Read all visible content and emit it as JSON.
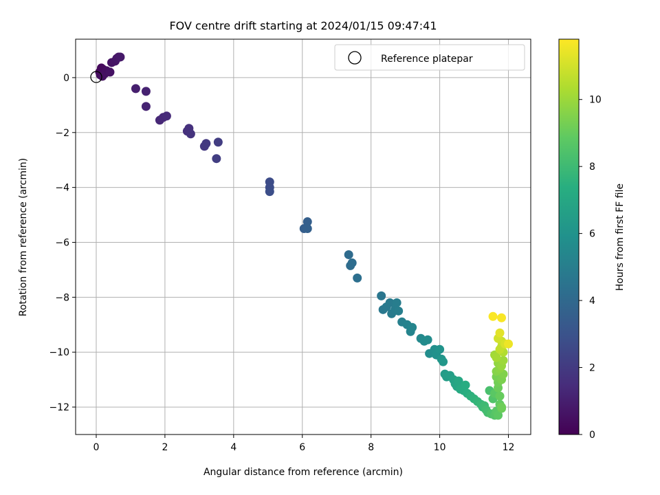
{
  "chart_data": {
    "type": "scatter",
    "title": "FOV centre drift starting at 2024/01/15 09:47:41",
    "xlabel": "Angular distance from reference (arcmin)",
    "ylabel": "Rotation from reference (arcmin)",
    "xlim": [
      -0.6,
      12.65
    ],
    "ylim": [
      -13.0,
      1.4
    ],
    "xticks": [
      0,
      2,
      4,
      6,
      8,
      10,
      12
    ],
    "yticks": [
      0,
      -2,
      -4,
      -6,
      -8,
      -10,
      -12
    ],
    "grid": true,
    "legend": {
      "placement": "top-right",
      "label": "Reference platepar"
    },
    "reference_point": {
      "x": 0,
      "y": 0
    },
    "colorbar": {
      "label": "Hours from first FF file",
      "min": 0,
      "max": 11.8,
      "ticks": [
        0,
        2,
        4,
        6,
        8,
        10
      ],
      "colormap": "viridis"
    },
    "series": [
      {
        "x": [
          0.1,
          0.15,
          0.2,
          0.12,
          0.25,
          0.3,
          0.18,
          0.4,
          0.45,
          0.55,
          0.6,
          0.65,
          0.7,
          1.15,
          1.45,
          1.45,
          1.85,
          1.95,
          2.05,
          2.65,
          2.7,
          2.75,
          3.15,
          3.2,
          3.55,
          3.5,
          5.05,
          5.05,
          5.05,
          6.05,
          6.15,
          6.15,
          7.35,
          7.4,
          7.45,
          7.6,
          8.3,
          8.35,
          8.45,
          8.55,
          8.6,
          8.7,
          8.75,
          8.8,
          8.9,
          9.05,
          9.15,
          9.2,
          9.45,
          9.55,
          9.65,
          9.7,
          9.85,
          9.9,
          10.0,
          10.05,
          10.1,
          10.15,
          10.2,
          10.3,
          10.4,
          10.45,
          10.5,
          10.55,
          10.6,
          10.7,
          10.75,
          10.8,
          10.9,
          11.0,
          11.1,
          11.2,
          11.25,
          11.3,
          11.35,
          11.4,
          11.45,
          11.5,
          11.55,
          11.6,
          11.65,
          11.6,
          11.7,
          11.75,
          11.55,
          11.8,
          11.65,
          11.7,
          11.75,
          11.85,
          11.8,
          11.7,
          11.75,
          11.8,
          11.65,
          11.7,
          11.8,
          11.85,
          11.9,
          11.75,
          11.8,
          11.85,
          11.7,
          11.75,
          11.65,
          11.6,
          11.8,
          12.0,
          11.8
        ],
        "y": [
          0.2,
          0.35,
          0.3,
          0.1,
          0.15,
          0.25,
          0.05,
          0.2,
          0.55,
          0.6,
          0.7,
          0.75,
          0.75,
          -0.4,
          -0.5,
          -1.05,
          -1.55,
          -1.45,
          -1.4,
          -1.95,
          -1.85,
          -2.05,
          -2.5,
          -2.4,
          -2.35,
          -2.95,
          -3.8,
          -4.0,
          -4.15,
          -5.5,
          -5.25,
          -5.5,
          -6.45,
          -6.85,
          -6.75,
          -7.3,
          -7.95,
          -8.45,
          -8.35,
          -8.2,
          -8.6,
          -8.45,
          -8.2,
          -8.5,
          -8.9,
          -9.0,
          -9.25,
          -9.1,
          -9.5,
          -9.6,
          -9.55,
          -10.05,
          -9.9,
          -10.1,
          -9.9,
          -10.25,
          -10.35,
          -10.8,
          -10.9,
          -10.85,
          -11.0,
          -11.15,
          -11.25,
          -11.05,
          -11.35,
          -11.4,
          -11.2,
          -11.5,
          -11.6,
          -11.7,
          -11.8,
          -11.9,
          -12.0,
          -11.95,
          -12.1,
          -12.2,
          -11.4,
          -12.25,
          -11.7,
          -12.3,
          -12.15,
          -11.5,
          -12.3,
          -11.9,
          -8.7,
          -8.75,
          -10.7,
          -10.4,
          -10.6,
          -10.0,
          -9.8,
          -9.5,
          -9.3,
          -9.6,
          -10.9,
          -11.1,
          -11.0,
          -10.3,
          -9.7,
          -9.9,
          -10.5,
          -10.8,
          -11.3,
          -11.6,
          -10.2,
          -10.1,
          -12.05,
          -9.7,
          -12.0
        ],
        "hours": [
          0.2,
          0.25,
          0.3,
          0.35,
          0.4,
          0.45,
          0.5,
          0.55,
          0.6,
          0.65,
          0.7,
          0.75,
          0.8,
          1.0,
          1.1,
          1.15,
          1.3,
          1.35,
          1.4,
          1.6,
          1.65,
          1.7,
          1.9,
          1.95,
          2.1,
          2.15,
          2.7,
          2.75,
          2.8,
          3.5,
          3.55,
          3.6,
          4.1,
          4.15,
          4.2,
          4.3,
          4.6,
          4.7,
          4.75,
          4.8,
          4.85,
          4.9,
          4.95,
          5.0,
          5.1,
          5.2,
          5.3,
          5.35,
          5.5,
          5.6,
          5.65,
          5.7,
          5.8,
          5.9,
          6.0,
          6.1,
          6.2,
          6.4,
          6.5,
          6.55,
          6.7,
          6.8,
          6.9,
          7.0,
          7.1,
          7.2,
          7.25,
          7.35,
          7.5,
          7.6,
          7.7,
          7.8,
          7.9,
          8.0,
          8.1,
          8.2,
          8.3,
          8.4,
          8.5,
          8.6,
          8.7,
          8.75,
          8.8,
          8.9,
          11.75,
          11.7,
          9.6,
          9.8,
          9.7,
          10.4,
          10.6,
          11.0,
          11.3,
          10.8,
          9.3,
          9.2,
          9.4,
          10.0,
          11.1,
          10.7,
          9.9,
          9.5,
          9.1,
          9.0,
          10.2,
          10.1,
          9.05,
          11.5,
          9.15
        ]
      }
    ]
  }
}
